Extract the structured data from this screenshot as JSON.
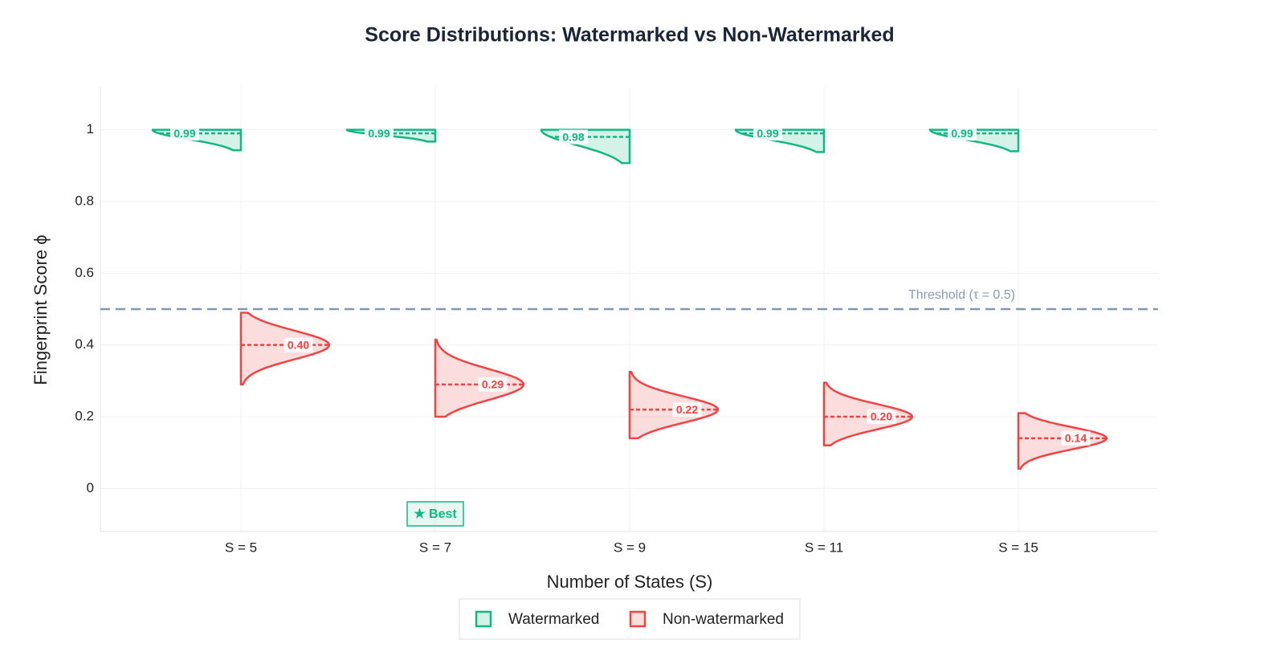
{
  "chart_data": {
    "type": "violin",
    "title": "Score Distributions: Watermarked vs Non-Watermarked",
    "x_label": "Number of States (S)",
    "y_label": "Fingerprint Score ϕ",
    "categories": [
      "S = 5",
      "S = 7",
      "S = 9",
      "S = 11",
      "S = 15"
    ],
    "ylim": [
      -0.12,
      1.12
    ],
    "yticks": [
      0,
      0.2,
      0.4,
      0.6,
      0.8,
      1
    ],
    "grid": true,
    "series": [
      {
        "name": "Watermarked",
        "color": "#10b981",
        "side": "negative",
        "min": [
          0.943,
          0.967,
          0.907,
          0.938,
          0.94
        ],
        "max": [
          1,
          1,
          1,
          1,
          1
        ],
        "median": [
          0.99,
          0.99,
          0.98,
          0.99,
          0.99
        ],
        "value_labels": [
          "0.99",
          "0.99",
          "0.98",
          "0.99",
          "0.99"
        ]
      },
      {
        "name": "Non-watermarked",
        "color": "#ef4444",
        "side": "positive",
        "min": [
          0.29,
          0.2,
          0.14,
          0.12,
          0.055
        ],
        "max": [
          0.49,
          0.415,
          0.325,
          0.295,
          0.21
        ],
        "median": [
          0.4,
          0.29,
          0.22,
          0.2,
          0.14
        ],
        "value_labels": [
          "0.40",
          "0.29",
          "0.22",
          "0.20",
          "0.14"
        ]
      }
    ],
    "threshold": {
      "value": 0.5,
      "label": "Threshold (τ = 0.5)"
    },
    "best": {
      "text": "★ Best",
      "category": "S = 7"
    }
  }
}
